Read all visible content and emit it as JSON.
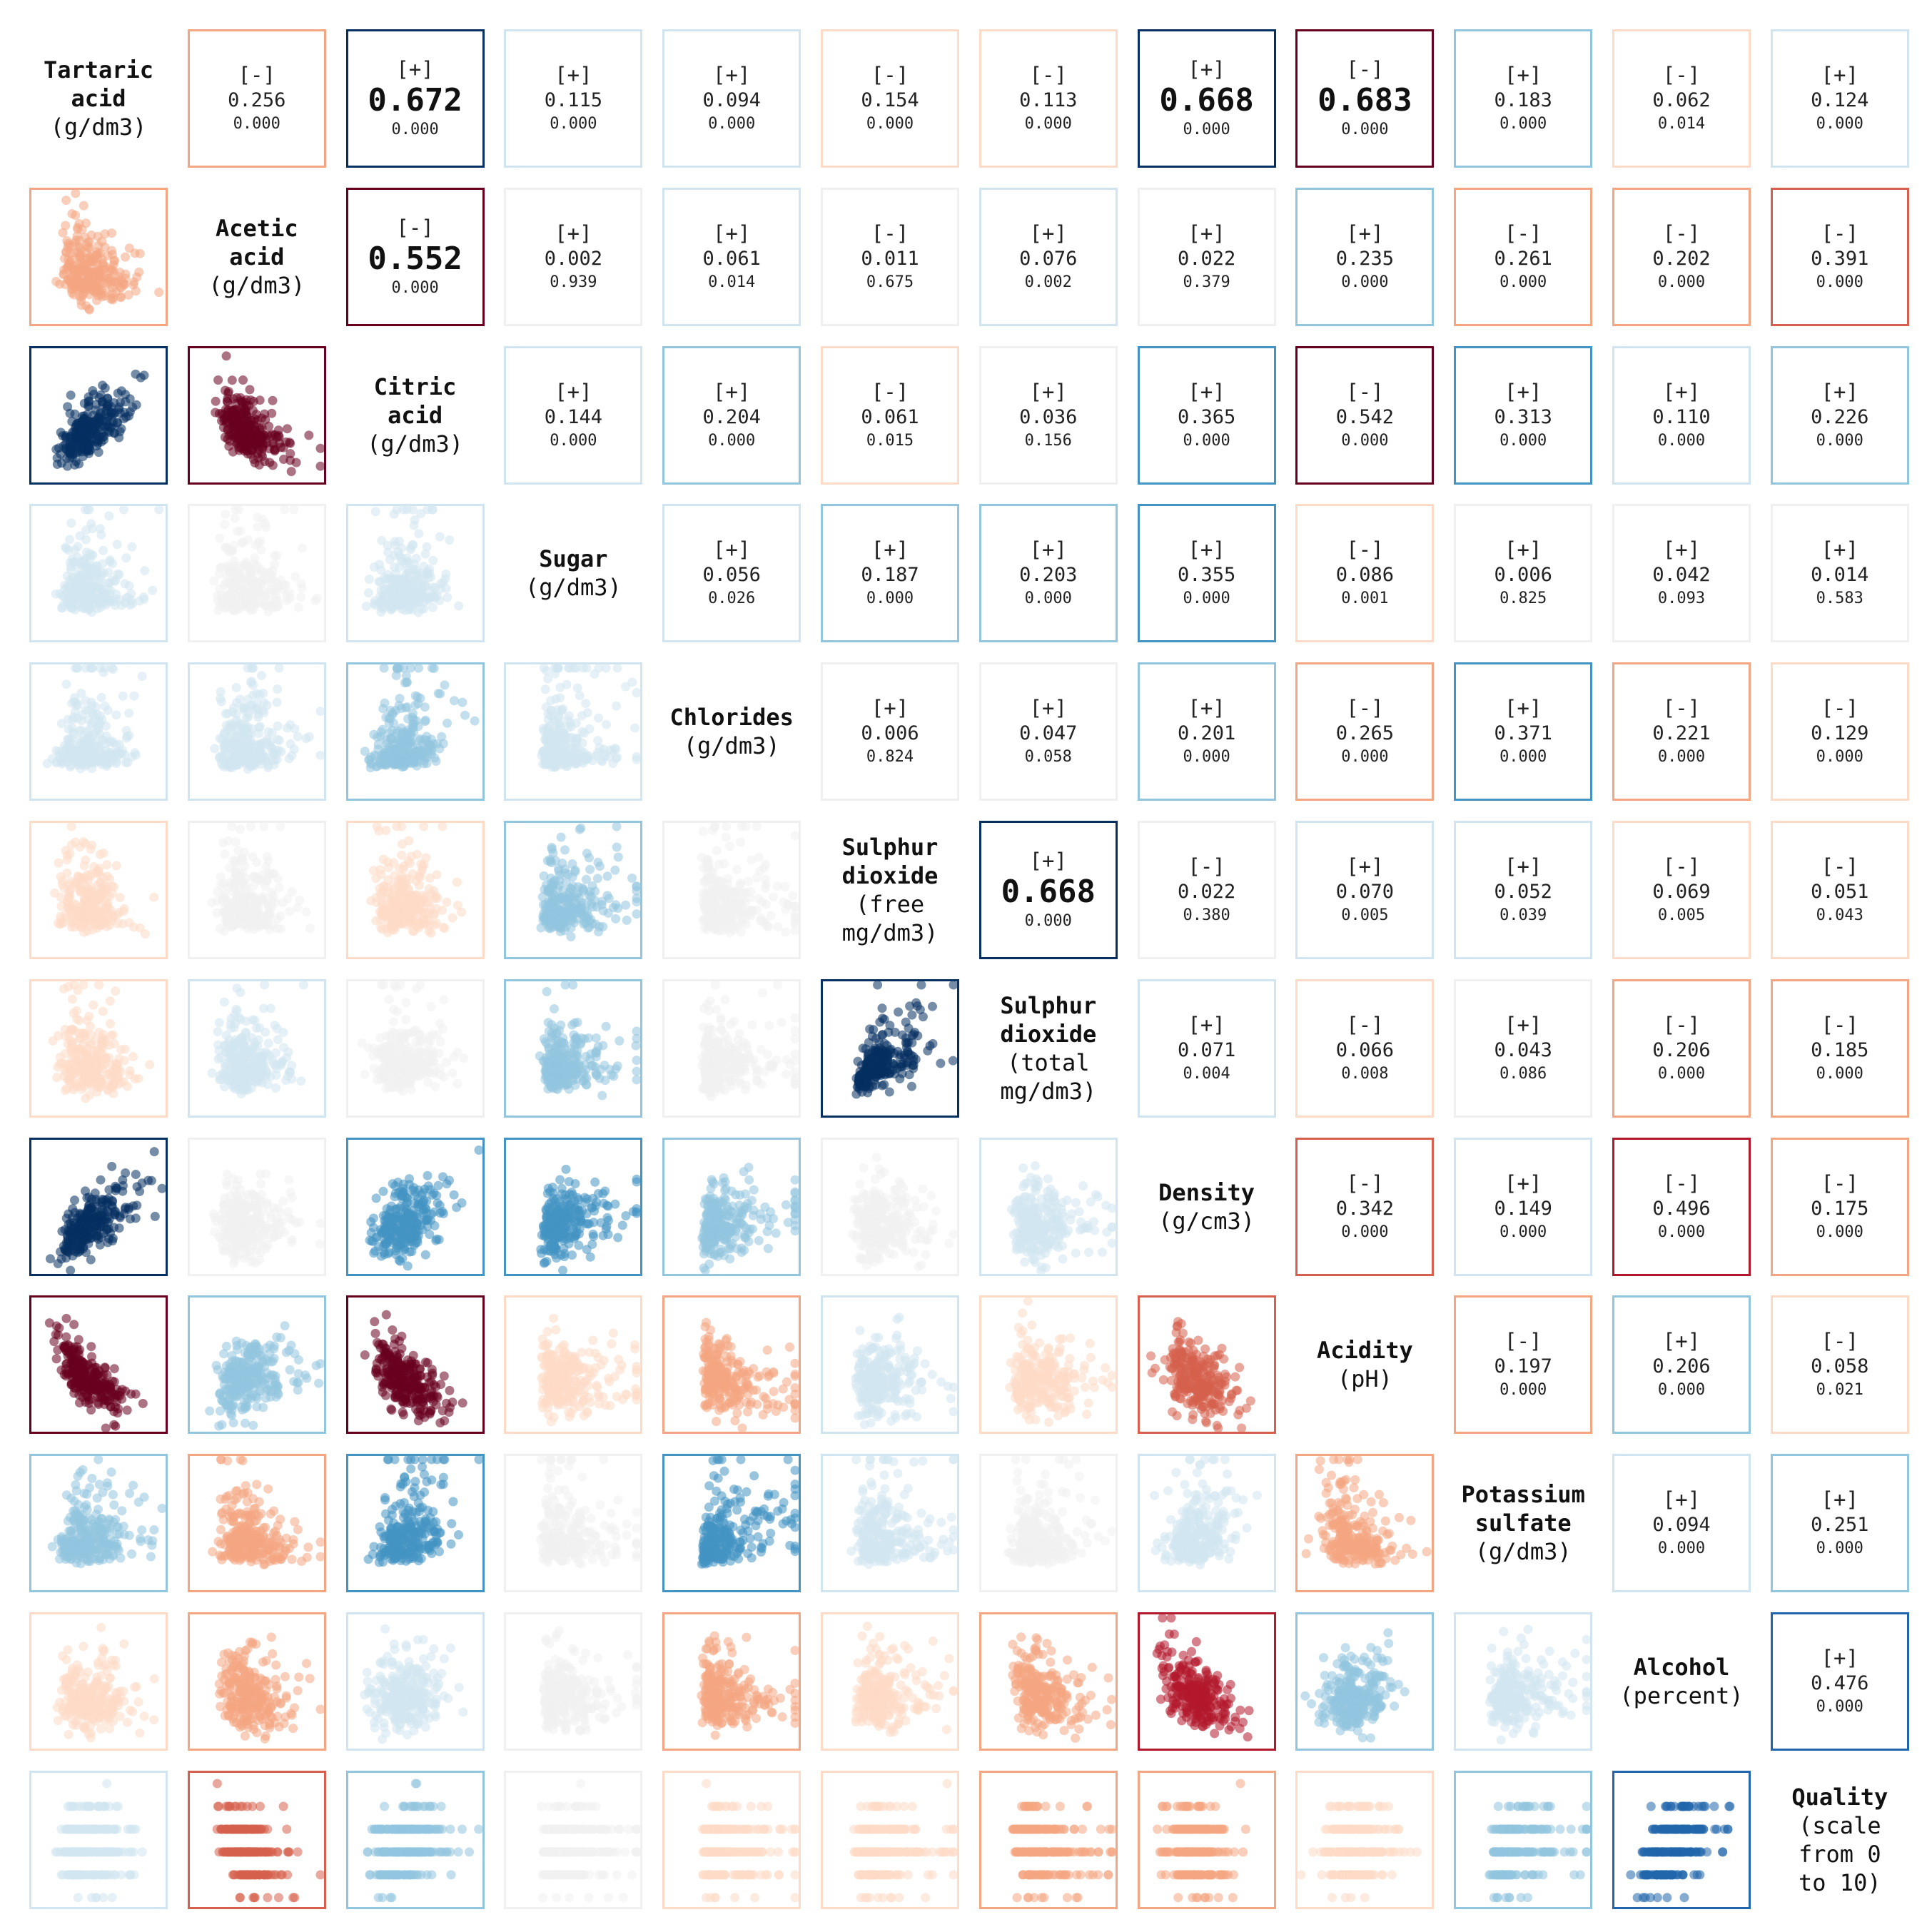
{
  "chart_data": {
    "type": "scatter-matrix",
    "variables": [
      {
        "name": "Tartaric\nacid",
        "unit": "(g/dm3)"
      },
      {
        "name": "Acetic\nacid",
        "unit": "(g/dm3)"
      },
      {
        "name": "Citric\nacid",
        "unit": "(g/dm3)"
      },
      {
        "name": "Sugar",
        "unit": "(g/dm3)"
      },
      {
        "name": "Chlorides",
        "unit": "(g/dm3)"
      },
      {
        "name": "Sulphur\ndioxide",
        "unit": "(free\nmg/dm3)"
      },
      {
        "name": "Sulphur\ndioxide",
        "unit": "(total\nmg/dm3)"
      },
      {
        "name": "Density",
        "unit": "(g/cm3)"
      },
      {
        "name": "Acidity",
        "unit": "(pH)"
      },
      {
        "name": "Potassium\nsulfate",
        "unit": "(g/dm3)"
      },
      {
        "name": "Alcohol",
        "unit": "(percent)"
      },
      {
        "name": "Quality",
        "unit": "(scale\nfrom 0\nto 10)"
      }
    ],
    "pairs": [
      {
        "i": 0,
        "j": 1,
        "sign": "[-]",
        "r": "0.256",
        "p": "0.000"
      },
      {
        "i": 0,
        "j": 2,
        "sign": "[+]",
        "r": "0.672",
        "p": "0.000"
      },
      {
        "i": 0,
        "j": 3,
        "sign": "[+]",
        "r": "0.115",
        "p": "0.000"
      },
      {
        "i": 0,
        "j": 4,
        "sign": "[+]",
        "r": "0.094",
        "p": "0.000"
      },
      {
        "i": 0,
        "j": 5,
        "sign": "[-]",
        "r": "0.154",
        "p": "0.000"
      },
      {
        "i": 0,
        "j": 6,
        "sign": "[-]",
        "r": "0.113",
        "p": "0.000"
      },
      {
        "i": 0,
        "j": 7,
        "sign": "[+]",
        "r": "0.668",
        "p": "0.000"
      },
      {
        "i": 0,
        "j": 8,
        "sign": "[-]",
        "r": "0.683",
        "p": "0.000"
      },
      {
        "i": 0,
        "j": 9,
        "sign": "[+]",
        "r": "0.183",
        "p": "0.000"
      },
      {
        "i": 0,
        "j": 10,
        "sign": "[-]",
        "r": "0.062",
        "p": "0.014"
      },
      {
        "i": 0,
        "j": 11,
        "sign": "[+]",
        "r": "0.124",
        "p": "0.000"
      },
      {
        "i": 1,
        "j": 2,
        "sign": "[-]",
        "r": "0.552",
        "p": "0.000"
      },
      {
        "i": 1,
        "j": 3,
        "sign": "[+]",
        "r": "0.002",
        "p": "0.939"
      },
      {
        "i": 1,
        "j": 4,
        "sign": "[+]",
        "r": "0.061",
        "p": "0.014"
      },
      {
        "i": 1,
        "j": 5,
        "sign": "[-]",
        "r": "0.011",
        "p": "0.675"
      },
      {
        "i": 1,
        "j": 6,
        "sign": "[+]",
        "r": "0.076",
        "p": "0.002"
      },
      {
        "i": 1,
        "j": 7,
        "sign": "[+]",
        "r": "0.022",
        "p": "0.379"
      },
      {
        "i": 1,
        "j": 8,
        "sign": "[+]",
        "r": "0.235",
        "p": "0.000"
      },
      {
        "i": 1,
        "j": 9,
        "sign": "[-]",
        "r": "0.261",
        "p": "0.000"
      },
      {
        "i": 1,
        "j": 10,
        "sign": "[-]",
        "r": "0.202",
        "p": "0.000"
      },
      {
        "i": 1,
        "j": 11,
        "sign": "[-]",
        "r": "0.391",
        "p": "0.000"
      },
      {
        "i": 2,
        "j": 3,
        "sign": "[+]",
        "r": "0.144",
        "p": "0.000"
      },
      {
        "i": 2,
        "j": 4,
        "sign": "[+]",
        "r": "0.204",
        "p": "0.000"
      },
      {
        "i": 2,
        "j": 5,
        "sign": "[-]",
        "r": "0.061",
        "p": "0.015"
      },
      {
        "i": 2,
        "j": 6,
        "sign": "[+]",
        "r": "0.036",
        "p": "0.156"
      },
      {
        "i": 2,
        "j": 7,
        "sign": "[+]",
        "r": "0.365",
        "p": "0.000"
      },
      {
        "i": 2,
        "j": 8,
        "sign": "[-]",
        "r": "0.542",
        "p": "0.000"
      },
      {
        "i": 2,
        "j": 9,
        "sign": "[+]",
        "r": "0.313",
        "p": "0.000"
      },
      {
        "i": 2,
        "j": 10,
        "sign": "[+]",
        "r": "0.110",
        "p": "0.000"
      },
      {
        "i": 2,
        "j": 11,
        "sign": "[+]",
        "r": "0.226",
        "p": "0.000"
      },
      {
        "i": 3,
        "j": 4,
        "sign": "[+]",
        "r": "0.056",
        "p": "0.026"
      },
      {
        "i": 3,
        "j": 5,
        "sign": "[+]",
        "r": "0.187",
        "p": "0.000"
      },
      {
        "i": 3,
        "j": 6,
        "sign": "[+]",
        "r": "0.203",
        "p": "0.000"
      },
      {
        "i": 3,
        "j": 7,
        "sign": "[+]",
        "r": "0.355",
        "p": "0.000"
      },
      {
        "i": 3,
        "j": 8,
        "sign": "[-]",
        "r": "0.086",
        "p": "0.001"
      },
      {
        "i": 3,
        "j": 9,
        "sign": "[+]",
        "r": "0.006",
        "p": "0.825"
      },
      {
        "i": 3,
        "j": 10,
        "sign": "[+]",
        "r": "0.042",
        "p": "0.093"
      },
      {
        "i": 3,
        "j": 11,
        "sign": "[+]",
        "r": "0.014",
        "p": "0.583"
      },
      {
        "i": 4,
        "j": 5,
        "sign": "[+]",
        "r": "0.006",
        "p": "0.824"
      },
      {
        "i": 4,
        "j": 6,
        "sign": "[+]",
        "r": "0.047",
        "p": "0.058"
      },
      {
        "i": 4,
        "j": 7,
        "sign": "[+]",
        "r": "0.201",
        "p": "0.000"
      },
      {
        "i": 4,
        "j": 8,
        "sign": "[-]",
        "r": "0.265",
        "p": "0.000"
      },
      {
        "i": 4,
        "j": 9,
        "sign": "[+]",
        "r": "0.371",
        "p": "0.000"
      },
      {
        "i": 4,
        "j": 10,
        "sign": "[-]",
        "r": "0.221",
        "p": "0.000"
      },
      {
        "i": 4,
        "j": 11,
        "sign": "[-]",
        "r": "0.129",
        "p": "0.000"
      },
      {
        "i": 5,
        "j": 6,
        "sign": "[+]",
        "r": "0.668",
        "p": "0.000"
      },
      {
        "i": 5,
        "j": 7,
        "sign": "[-]",
        "r": "0.022",
        "p": "0.380"
      },
      {
        "i": 5,
        "j": 8,
        "sign": "[+]",
        "r": "0.070",
        "p": "0.005"
      },
      {
        "i": 5,
        "j": 9,
        "sign": "[+]",
        "r": "0.052",
        "p": "0.039"
      },
      {
        "i": 5,
        "j": 10,
        "sign": "[-]",
        "r": "0.069",
        "p": "0.005"
      },
      {
        "i": 5,
        "j": 11,
        "sign": "[-]",
        "r": "0.051",
        "p": "0.043"
      },
      {
        "i": 6,
        "j": 7,
        "sign": "[+]",
        "r": "0.071",
        "p": "0.004"
      },
      {
        "i": 6,
        "j": 8,
        "sign": "[-]",
        "r": "0.066",
        "p": "0.008"
      },
      {
        "i": 6,
        "j": 9,
        "sign": "[+]",
        "r": "0.043",
        "p": "0.086"
      },
      {
        "i": 6,
        "j": 10,
        "sign": "[-]",
        "r": "0.206",
        "p": "0.000"
      },
      {
        "i": 6,
        "j": 11,
        "sign": "[-]",
        "r": "0.185",
        "p": "0.000"
      },
      {
        "i": 7,
        "j": 8,
        "sign": "[-]",
        "r": "0.342",
        "p": "0.000"
      },
      {
        "i": 7,
        "j": 9,
        "sign": "[+]",
        "r": "0.149",
        "p": "0.000"
      },
      {
        "i": 7,
        "j": 10,
        "sign": "[-]",
        "r": "0.496",
        "p": "0.000"
      },
      {
        "i": 7,
        "j": 11,
        "sign": "[-]",
        "r": "0.175",
        "p": "0.000"
      },
      {
        "i": 8,
        "j": 9,
        "sign": "[-]",
        "r": "0.197",
        "p": "0.000"
      },
      {
        "i": 8,
        "j": 10,
        "sign": "[+]",
        "r": "0.206",
        "p": "0.000"
      },
      {
        "i": 8,
        "j": 11,
        "sign": "[-]",
        "r": "0.058",
        "p": "0.021"
      },
      {
        "i": 9,
        "j": 10,
        "sign": "[+]",
        "r": "0.094",
        "p": "0.000"
      },
      {
        "i": 9,
        "j": 11,
        "sign": "[+]",
        "r": "0.251",
        "p": "0.000"
      },
      {
        "i": 10,
        "j": 11,
        "sign": "[+]",
        "r": "0.476",
        "p": "0.000"
      }
    ],
    "highlight_threshold": 0.55,
    "colormap": {
      "neg": [
        "#fddbc7",
        "#f4a582",
        "#d6604d",
        "#b2182b",
        "#67001f"
      ],
      "pos": [
        "#d1e5f0",
        "#92c5de",
        "#4393c3",
        "#2166ac",
        "#053061"
      ],
      "neutral": "#f0f0f0"
    }
  }
}
